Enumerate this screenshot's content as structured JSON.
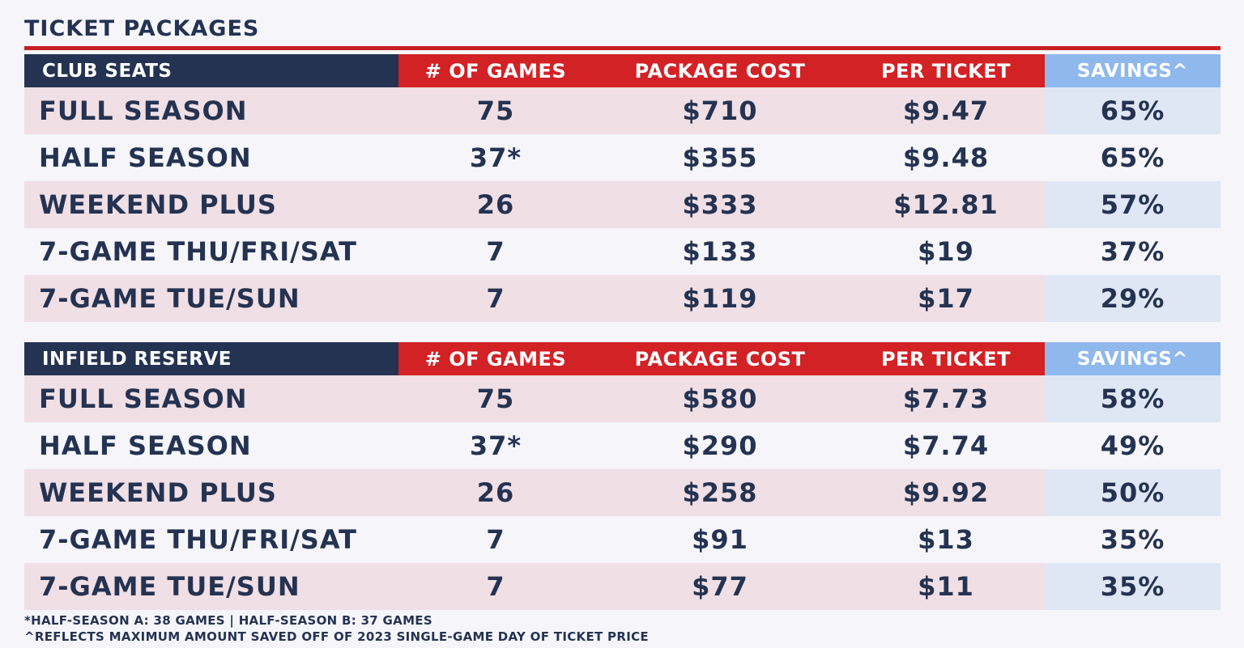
{
  "title": "TICKET PACKAGES",
  "headers": {
    "games": "# OF GAMES",
    "cost": "PACKAGE COST",
    "per": "PER TICKET",
    "savings": "SAVINGS^"
  },
  "sections": [
    {
      "name": "CLUB SEATS",
      "rows": [
        {
          "name": "FULL SEASON",
          "games": "75",
          "cost": "$710",
          "per": "$9.47",
          "savings": "65%"
        },
        {
          "name": "HALF SEASON",
          "games": "37*",
          "cost": "$355",
          "per": "$9.48",
          "savings": "65%"
        },
        {
          "name": "WEEKEND PLUS",
          "games": "26",
          "cost": "$333",
          "per": "$12.81",
          "savings": "57%"
        },
        {
          "name": "7-GAME THU/FRI/SAT",
          "games": "7",
          "cost": "$133",
          "per": "$19",
          "savings": "37%"
        },
        {
          "name": "7-GAME TUE/SUN",
          "games": "7",
          "cost": "$119",
          "per": "$17",
          "savings": "29%"
        }
      ]
    },
    {
      "name": "INFIELD RESERVE",
      "rows": [
        {
          "name": "FULL SEASON",
          "games": "75",
          "cost": "$580",
          "per": "$7.73",
          "savings": "58%"
        },
        {
          "name": "HALF SEASON",
          "games": "37*",
          "cost": "$290",
          "per": "$7.74",
          "savings": "49%"
        },
        {
          "name": "WEEKEND PLUS",
          "games": "26",
          "cost": "$258",
          "per": "$9.92",
          "savings": "50%"
        },
        {
          "name": "7-GAME THU/FRI/SAT",
          "games": "7",
          "cost": "$91",
          "per": "$13",
          "savings": "35%"
        },
        {
          "name": "7-GAME TUE/SUN",
          "games": "7",
          "cost": "$77",
          "per": "$11",
          "savings": "35%"
        }
      ]
    }
  ],
  "footnotes": [
    "*HALF-SEASON A: 38 GAMES | HALF-SEASON B: 37 GAMES",
    "^REFLECTS MAXIMUM AMOUNT SAVED OFF OF 2023 SINGLE-GAME DAY OF TICKET PRICE"
  ],
  "colors": {
    "navy": "#253352",
    "red": "#d22226",
    "light_blue": "#8fb8ec",
    "pink_row": "#f0dfe5"
  }
}
